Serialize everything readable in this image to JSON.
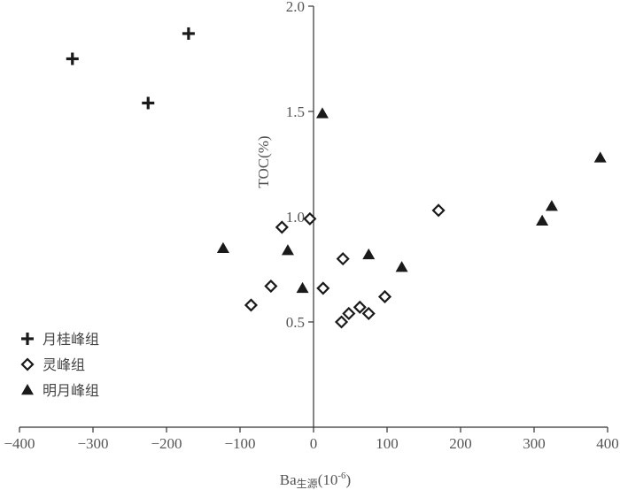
{
  "chart_data": {
    "type": "scatter",
    "title": "",
    "xlabel": "Ba",
    "xlabel_sub": "生源",
    "xlabel_unit": "(10",
    "xlabel_exp": "-6",
    "xlabel_close": ")",
    "ylabel": "TOC(%)",
    "xlim": [
      -400,
      400
    ],
    "ylim": [
      0,
      2.0
    ],
    "x_ticks": [
      -400,
      -300,
      -200,
      -100,
      0,
      100,
      200,
      300,
      400
    ],
    "x_tick_labels": [
      "−400",
      "−300",
      "−200",
      "−100",
      "0",
      "100",
      "200",
      "300",
      "400"
    ],
    "y_ticks": [
      0.5,
      1.0,
      1.5,
      2.0
    ],
    "y_tick_labels": [
      "0.5",
      "1.0",
      "1.5",
      "2.0"
    ],
    "grid": false,
    "legend_position": "bottom-left",
    "series": [
      {
        "name": "月桂峰组",
        "marker": "plus",
        "color": "#1a1a1a",
        "x": [
          -328,
          -225,
          -170
        ],
        "y": [
          1.75,
          1.54,
          1.87
        ]
      },
      {
        "name": "灵峰组",
        "marker": "diamond-open",
        "color": "#1a1a1a",
        "x": [
          -85,
          -58,
          -43,
          -5,
          13,
          38,
          40,
          48,
          63,
          75,
          97,
          170
        ],
        "y": [
          0.58,
          0.67,
          0.95,
          0.99,
          0.66,
          0.5,
          0.8,
          0.54,
          0.57,
          0.54,
          0.62,
          1.03
        ]
      },
      {
        "name": "明月峰组",
        "marker": "triangle",
        "color": "#1a1a1a",
        "x": [
          -123,
          -35,
          -15,
          12,
          75,
          120,
          311,
          324,
          390
        ],
        "y": [
          0.85,
          0.84,
          0.66,
          1.49,
          0.82,
          0.76,
          0.98,
          1.05,
          1.28
        ]
      }
    ]
  }
}
